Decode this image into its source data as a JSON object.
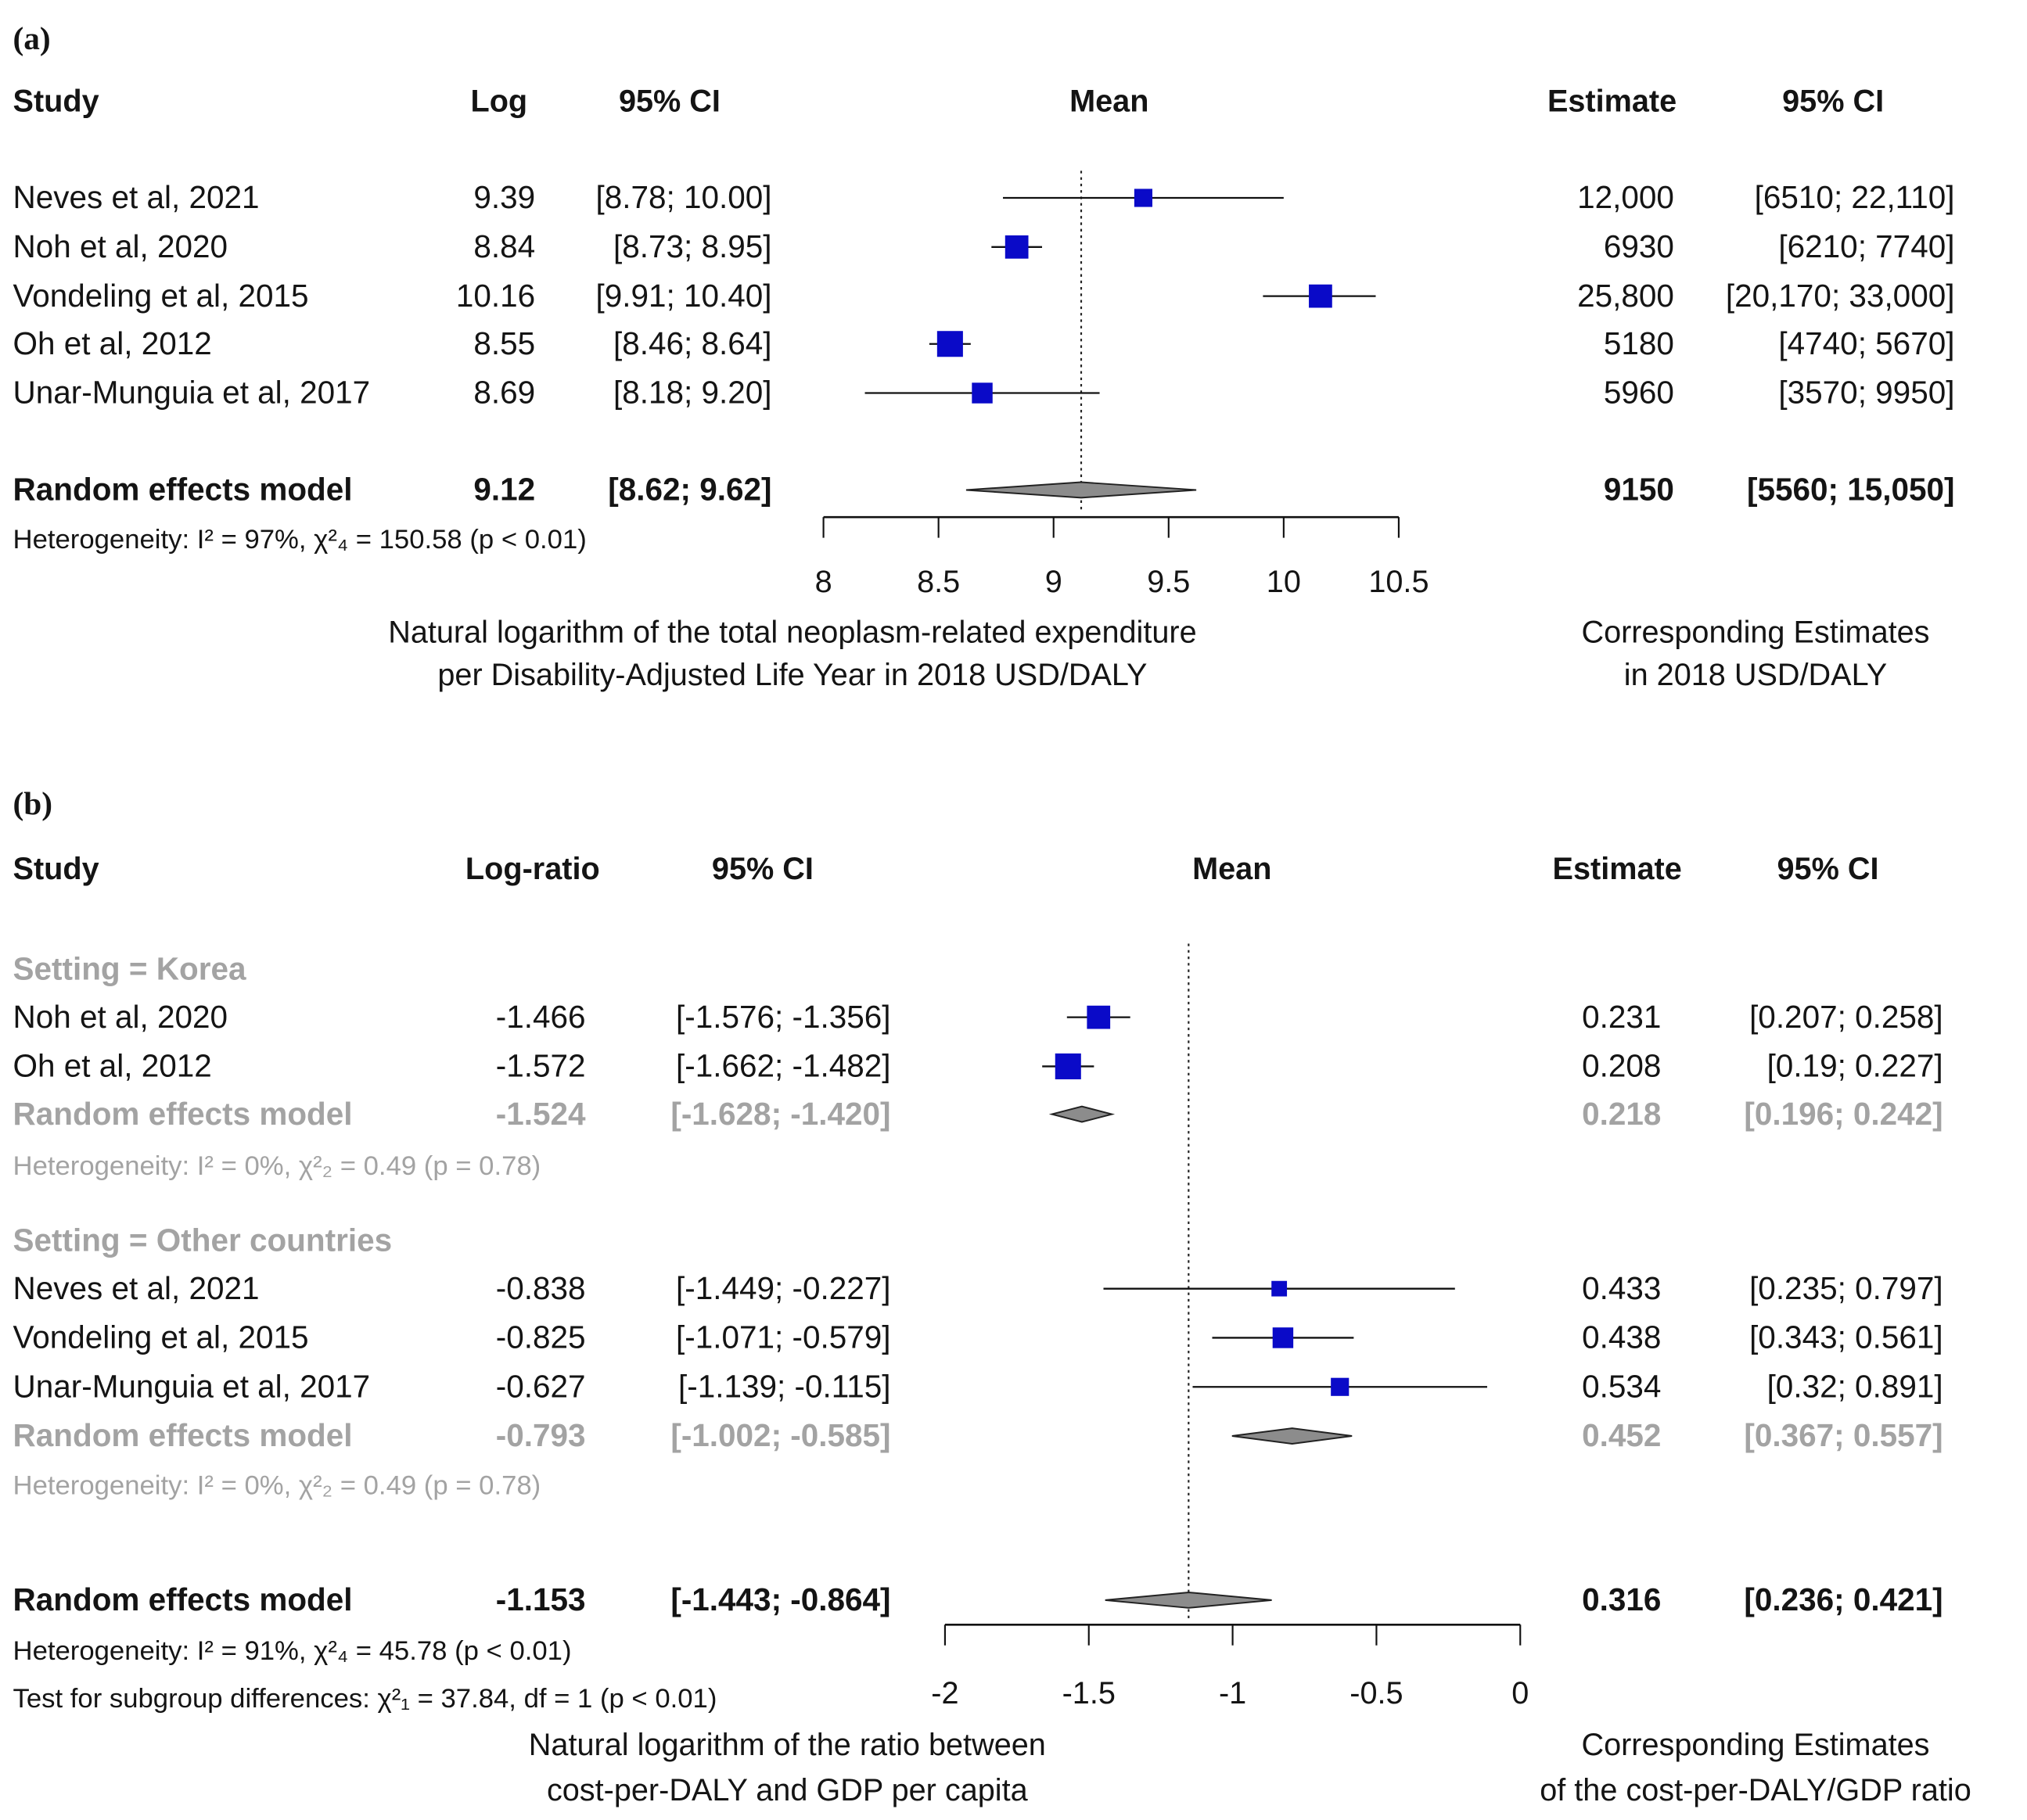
{
  "chart_data": [
    {
      "type": "forest",
      "panel_label": "(a)",
      "headers": {
        "study": "Study",
        "effect": "Log",
        "ci": "95% CI",
        "mean": "Mean",
        "estimate": "Estimate",
        "estimate_ci": "95% CI"
      },
      "xlim": [
        8,
        10.5
      ],
      "ticks": [
        8,
        8.5,
        9,
        9.5,
        10,
        10.5
      ],
      "tick_labels": [
        "8",
        "8.5",
        "9",
        "9.5",
        "10",
        "10.5"
      ],
      "reference_line": 9.12,
      "xlabel": [
        "Natural logarithm of the total neoplasm-related expenditure",
        "per Disability-Adjusted Life Year in 2018 USD/DALY"
      ],
      "right_label": [
        "Corresponding Estimates",
        "in 2018 USD/DALY"
      ],
      "colors": {
        "square": "#0a0ac8",
        "diamond": "#8c8c8c",
        "subgroup_text": "#a3a3a3"
      },
      "rows": [
        {
          "type": "study",
          "study": "Neves et al, 2021",
          "effect": "9.39",
          "ci": "[8.78; 10.00]",
          "estimate": "12,000",
          "estimate_ci": "[6510; 22,110]",
          "mean": 9.39,
          "lower": 8.78,
          "upper": 10.0
        },
        {
          "type": "study",
          "study": "Noh et al, 2020",
          "effect": "8.84",
          "ci": "[8.73;  8.95]",
          "estimate": "6930",
          "estimate_ci": "[6210; 7740]",
          "mean": 8.84,
          "lower": 8.73,
          "upper": 8.95
        },
        {
          "type": "study",
          "study": "Vondeling et al, 2015",
          "effect": "10.16",
          "ci": "[9.91; 10.40]",
          "estimate": "25,800",
          "estimate_ci": "[20,170; 33,000]",
          "mean": 10.16,
          "lower": 9.91,
          "upper": 10.4
        },
        {
          "type": "study",
          "study": "Oh et al, 2012",
          "effect": "8.55",
          "ci": "[8.46;  8.64]",
          "estimate": "5180",
          "estimate_ci": "[4740; 5670]",
          "mean": 8.55,
          "lower": 8.46,
          "upper": 8.64
        },
        {
          "type": "study",
          "study": "Unar-Munguia et al, 2017",
          "effect": "8.69",
          "ci": "[8.18;  9.20]",
          "estimate": "5960",
          "estimate_ci": "[3570; 9950]",
          "mean": 8.69,
          "lower": 8.18,
          "upper": 9.2
        },
        {
          "type": "model",
          "study": "Random effects model",
          "effect": "9.12",
          "ci": "[8.62;  9.62]",
          "estimate": "9150",
          "estimate_ci": "[5560; 15,050]",
          "mean": 9.12,
          "lower": 8.62,
          "upper": 9.62
        },
        {
          "type": "het",
          "study": "Heterogeneity: I² = 97%, χ²₄ = 150.58 (p < 0.01)"
        }
      ]
    },
    {
      "type": "forest",
      "panel_label": "(b)",
      "headers": {
        "study": "Study",
        "effect": "Log-ratio",
        "ci": "95% CI",
        "mean": "Mean",
        "estimate": "Estimate",
        "estimate_ci": "95% CI"
      },
      "xlim": [
        -2,
        0
      ],
      "ticks": [
        -2,
        -1.5,
        -1,
        -0.5,
        0
      ],
      "tick_labels": [
        "-2",
        "-1.5",
        "-1",
        "-0.5",
        "0"
      ],
      "reference_line": -1.153,
      "xlabel": [
        "Natural logarithm of the ratio between",
        "cost-per-DALY and GDP per capita"
      ],
      "right_label": [
        "Corresponding Estimates",
        "of the cost-per-DALY/GDP ratio"
      ],
      "colors": {
        "square": "#0a0ac8",
        "diamond": "#8c8c8c",
        "subgroup_text": "#a3a3a3"
      },
      "rows": [
        {
          "type": "subgroup",
          "study": "Setting = Korea"
        },
        {
          "type": "study",
          "study": "Noh et al, 2020",
          "effect": "-1.466",
          "ci": "[-1.576; -1.356]",
          "estimate": "0.231",
          "estimate_ci": "[0.207; 0.258]",
          "mean": -1.466,
          "lower": -1.576,
          "upper": -1.356
        },
        {
          "type": "study",
          "study": "Oh et al, 2012",
          "effect": "-1.572",
          "ci": "[-1.662; -1.482]",
          "estimate": "0.208",
          "estimate_ci": "[0.19; 0.227]",
          "mean": -1.572,
          "lower": -1.662,
          "upper": -1.482
        },
        {
          "type": "submodel",
          "study": "Random effects model",
          "effect": "-1.524",
          "ci": "[-1.628; -1.420]",
          "estimate": "0.218",
          "estimate_ci": "[0.196; 0.242]",
          "mean": -1.524,
          "lower": -1.628,
          "upper": -1.42
        },
        {
          "type": "subhet",
          "study": "Heterogeneity: I² = 0%, χ²₂ = 0.49 (p = 0.78)"
        },
        {
          "type": "subgroup",
          "study": "Setting = Other countries"
        },
        {
          "type": "study",
          "study": "Neves et al, 2021",
          "effect": "-0.838",
          "ci": "[-1.449; -0.227]",
          "estimate": "0.433",
          "estimate_ci": "[0.235; 0.797]",
          "mean": -0.838,
          "lower": -1.449,
          "upper": -0.227
        },
        {
          "type": "study",
          "study": "Vondeling et al, 2015",
          "effect": "-0.825",
          "ci": "[-1.071; -0.579]",
          "estimate": "0.438",
          "estimate_ci": "[0.343; 0.561]",
          "mean": -0.825,
          "lower": -1.071,
          "upper": -0.579
        },
        {
          "type": "study",
          "study": "Unar-Munguia et al, 2017",
          "effect": "-0.627",
          "ci": "[-1.139; -0.115]",
          "estimate": "0.534",
          "estimate_ci": "[0.32; 0.891]",
          "mean": -0.627,
          "lower": -1.139,
          "upper": -0.115
        },
        {
          "type": "submodel",
          "study": "Random effects model",
          "effect": "-0.793",
          "ci": "[-1.002; -0.585]",
          "estimate": "0.452",
          "estimate_ci": "[0.367; 0.557]",
          "mean": -0.793,
          "lower": -1.002,
          "upper": -0.585
        },
        {
          "type": "subhet",
          "study": "Heterogeneity: I² = 0%, χ²₂ = 0.49 (p = 0.78)"
        },
        {
          "type": "model",
          "study": "Random effects model",
          "effect": "-1.153",
          "ci": "[-1.443; -0.864]",
          "estimate": "0.316",
          "estimate_ci": "[0.236; 0.421]",
          "mean": -1.153,
          "lower": -1.443,
          "upper": -0.864
        },
        {
          "type": "het",
          "study": "Heterogeneity: I² = 91%, χ²₄ = 45.78 (p < 0.01)"
        },
        {
          "type": "het",
          "study": "Test for subgroup differences: χ²₁ = 37.84, df = 1 (p < 0.01)"
        }
      ]
    }
  ]
}
